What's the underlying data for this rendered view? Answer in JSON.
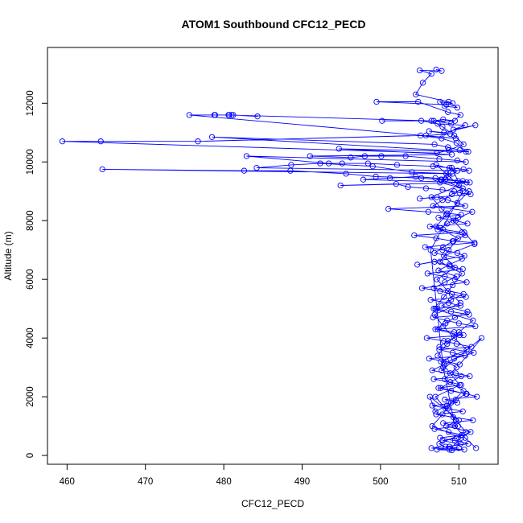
{
  "chart_data": {
    "type": "scatter",
    "title": "ATOM1 Southbound CFC12_PECD",
    "xlabel": "CFC12_PECD",
    "ylabel": "Altitude (m)",
    "xlim": [
      457.5,
      515
    ],
    "ylim": [
      -300,
      13900
    ],
    "xticks": [
      460,
      470,
      480,
      490,
      500,
      510
    ],
    "yticks": [
      0,
      2000,
      4000,
      6000,
      8000,
      10000,
      12000
    ],
    "grid": false,
    "legend": "none",
    "color": "#0000ff",
    "marker": "open-circle",
    "lines_connect_points": true,
    "series": [
      {
        "x": [
          507.1,
          507.8,
          505.0,
          506.5,
          505.4,
          504.5,
          508.7,
          509.8,
          508.2,
          507.6,
          509.2,
          508.4,
          499.5,
          504.8,
          508.6,
          510.2,
          509.0,
          506.8,
          508.0,
          509.5,
          500.2,
          505.2,
          507.3,
          510.8,
          509.3,
          512.1,
          508.1,
          506.2,
          508.9,
          505.8,
          509.6,
          475.6,
          478.8,
          480.7,
          481.2,
          484.3,
          481.0,
          478.9,
          480.6,
          506.5,
          507.9,
          509.4,
          510.6,
          508.7,
          507.2,
          459.4,
          464.3,
          476.7,
          505.1,
          507.8,
          509.7,
          510.9,
          478.5,
          506.9,
          508.6,
          510.1,
          511.2,
          494.7,
          509.1,
          491.0,
          496.2,
          498.0,
          500.1,
          503.2,
          507.5,
          509.8,
          510.9,
          482.9,
          493.4,
          495.1,
          498.4,
          502.1,
          506.7,
          508.8,
          510.6,
          511.3,
          484.2,
          488.6,
          492.3,
          499.0,
          504.0,
          509.2,
          464.5,
          482.6,
          488.5,
          495.6,
          499.4,
          505.2,
          507.7,
          509.9,
          511.0,
          497.8,
          501.2,
          504.5,
          507.0,
          508.3,
          510.5,
          511.4,
          494.9,
          502.0,
          503.5,
          505.8,
          507.9,
          509.4,
          510.1,
          511.5,
          505.0,
          507.2,
          508.6,
          509.8,
          510.8,
          501.0,
          506.1,
          508.5,
          510.3,
          507.4,
          509.6,
          511.1,
          506.3,
          508.0,
          510.4,
          504.3,
          507.1,
          509.3,
          512.0,
          505.7,
          507.9,
          509.8,
          510.7,
          504.7,
          506.9,
          508.8,
          510.5,
          506.0,
          508.2,
          509.5,
          511.0,
          505.3,
          507.6,
          509.1,
          510.9,
          506.4,
          508.7,
          510.2,
          507.0,
          509.0,
          511.3,
          506.7,
          508.5,
          510.0,
          512.1,
          507.3,
          509.4,
          510.6,
          505.9,
          508.1,
          509.7,
          511.6,
          507.5,
          509.2,
          510.8,
          506.2,
          508.4,
          510.1,
          512.9,
          507.8,
          509.6,
          511.4,
          506.8,
          508.9,
          510.3,
          507.4,
          509.0,
          511.0,
          512.3,
          508.2,
          509.8,
          506.6,
          508.6,
          510.5,
          507.1,
          509.3,
          511.8,
          508.0,
          509.9,
          506.9,
          508.7,
          510.4,
          507.6,
          509.5,
          511.2,
          508.3,
          510.0,
          507.2,
          509.1,
          510.7,
          506.5,
          508.8,
          510.2,
          507.9,
          509.7,
          511.5,
          508.4,
          510.0,
          506.3,
          507.0,
          508.5,
          509.6,
          510.9,
          507.7,
          508.9,
          510.3,
          506.6,
          508.1,
          509.4,
          511.9,
          507.5,
          508.6,
          510.1,
          507.0,
          508.3,
          509.5,
          511.1,
          507.8,
          509.0,
          510.6,
          506.8,
          508.2,
          509.7,
          507.4,
          508.8,
          510.4,
          506.9,
          508.0,
          509.2,
          510.8,
          507.3,
          508.5,
          509.9,
          511.7,
          506.7,
          507.9,
          509.1,
          510.5,
          507.6,
          508.7,
          509.8,
          507.1,
          508.4,
          510.0,
          506.5,
          507.8,
          509.3,
          510.7,
          512.0,
          508.1,
          509.5,
          507.2,
          508.6,
          510.2,
          506.9,
          508.0,
          509.4,
          511.0,
          507.7,
          508.9,
          510.1,
          507.0,
          508.3,
          509.6,
          510.9,
          507.5,
          508.8,
          510.3,
          506.6,
          507.9,
          509.0,
          510.6,
          508.2,
          509.7,
          507.3,
          508.5,
          510.0,
          511.8,
          506.8,
          508.1,
          509.2,
          510.4,
          507.6,
          508.7,
          509.9,
          507.1,
          508.4,
          509.8,
          511.3,
          507.8,
          509.1,
          510.5,
          506.4,
          507.2,
          508.0,
          509.5,
          510.8,
          512.2
        ],
        "y": [
          13150,
          13100,
          13120,
          13000,
          12700,
          12300,
          12050,
          11850,
          11900,
          12050,
          12000,
          11950,
          12050,
          12050,
          11700,
          11600,
          11300,
          11400,
          11450,
          11400,
          11400,
          11400,
          11300,
          11250,
          11100,
          11250,
          11000,
          11050,
          10950,
          10900,
          10800,
          11600,
          11600,
          11600,
          11600,
          11550,
          11600,
          11600,
          11600,
          11400,
          11200,
          10900,
          10600,
          10400,
          10300,
          10700,
          10700,
          10700,
          10900,
          10800,
          10650,
          10350,
          10850,
          10600,
          10500,
          10400,
          10350,
          10450,
          10250,
          10200,
          10150,
          10200,
          10200,
          10200,
          10100,
          10050,
          10000,
          10200,
          9950,
          9950,
          9950,
          9900,
          9850,
          9800,
          9750,
          9700,
          9800,
          9900,
          9950,
          9850,
          9650,
          9600,
          9750,
          9700,
          9700,
          9600,
          9500,
          9450,
          9400,
          9350,
          9300,
          9400,
          9450,
          9500,
          9450,
          9400,
          9350,
          9300,
          9200,
          9250,
          9150,
          9100,
          9050,
          9000,
          8950,
          8900,
          8750,
          8800,
          8700,
          8600,
          8500,
          8400,
          8300,
          8250,
          8200,
          8100,
          8000,
          7900,
          7800,
          7700,
          7600,
          7500,
          7400,
          7300,
          7250,
          7100,
          7000,
          6900,
          6800,
          6500,
          6600,
          6450,
          6350,
          6200,
          6100,
          6000,
          5900,
          5700,
          5600,
          5500,
          5400,
          5300,
          5200,
          5100,
          5000,
          4900,
          4800,
          4700,
          4600,
          4500,
          4400,
          4300,
          4200,
          4100,
          4000,
          3900,
          3800,
          3700,
          3600,
          3500,
          3400,
          3300,
          3200,
          3100,
          4000,
          2900,
          2800,
          2700,
          2600,
          2500,
          2400,
          2300,
          2200,
          2100,
          2000,
          1900,
          1800,
          1700,
          1600,
          1500,
          1400,
          1300,
          1200,
          1100,
          1000,
          900,
          800,
          700,
          600,
          500,
          400,
          300,
          250,
          200,
          180,
          200,
          250,
          300,
          400,
          500,
          600,
          800,
          1000,
          1200,
          2000,
          1500,
          1700,
          1900,
          2100,
          2300,
          2500,
          2700,
          2900,
          3100,
          3300,
          3500,
          3700,
          3900,
          4100,
          4300,
          4500,
          4700,
          4900,
          5100,
          5300,
          5500,
          5700,
          5900,
          6100,
          6300,
          6500,
          6700,
          6900,
          7100,
          7300,
          7500,
          7700,
          7900,
          8100,
          8300,
          8500,
          8700,
          8900,
          9100,
          9300,
          9500,
          9700,
          9900,
          9600,
          9200,
          8800,
          8400,
          8000,
          7600,
          7200,
          6800,
          6400,
          6000,
          5600,
          5200,
          4800,
          4400,
          4000,
          3600,
          3200,
          2800,
          2400,
          2000,
          1600,
          1200,
          800,
          400,
          200,
          600,
          1000,
          1400,
          1800,
          2200,
          2600,
          3000,
          3400,
          3800,
          4200,
          4600,
          5000,
          5400,
          5800,
          6200,
          6600,
          7000,
          7400,
          7800,
          8200,
          8600,
          9000,
          9400,
          9800,
          9000,
          7000,
          5000,
          3000,
          1000,
          600,
          250
        ]
      }
    ]
  }
}
